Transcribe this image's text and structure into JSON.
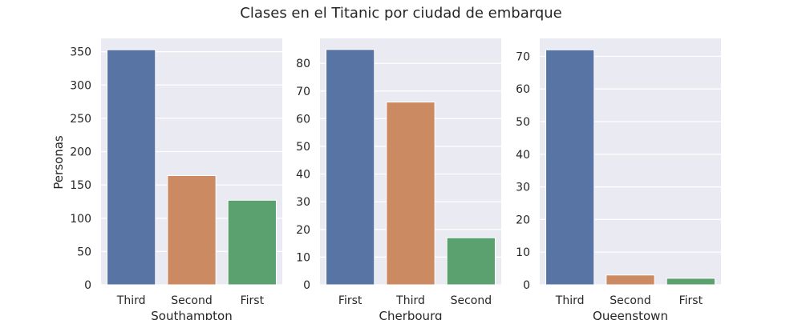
{
  "chart_data": {
    "type": "bar",
    "title": "Clases en el Titanic por ciudad de embarque",
    "ylabel": "Personas",
    "grid": true,
    "colors": [
      "#5874a5",
      "#cc8a62",
      "#5ba06f"
    ],
    "background": "#eaeaf2",
    "panels": [
      {
        "xlabel": "Southampton",
        "categories": [
          "Third",
          "Second",
          "First"
        ],
        "values": [
          353,
          164,
          127
        ],
        "yticks": [
          0,
          50,
          100,
          150,
          200,
          250,
          300,
          350
        ],
        "ylim": [
          0,
          370
        ]
      },
      {
        "xlabel": "Cherbourg",
        "categories": [
          "First",
          "Third",
          "Second"
        ],
        "values": [
          85,
          66,
          17
        ],
        "yticks": [
          0,
          10,
          20,
          30,
          40,
          50,
          60,
          70,
          80
        ],
        "ylim": [
          0,
          89
        ]
      },
      {
        "xlabel": "Queenstown",
        "categories": [
          "Third",
          "Second",
          "First"
        ],
        "values": [
          72,
          3,
          2
        ],
        "yticks": [
          0,
          10,
          20,
          30,
          40,
          50,
          60,
          70
        ],
        "ylim": [
          0,
          75.5
        ]
      }
    ]
  }
}
